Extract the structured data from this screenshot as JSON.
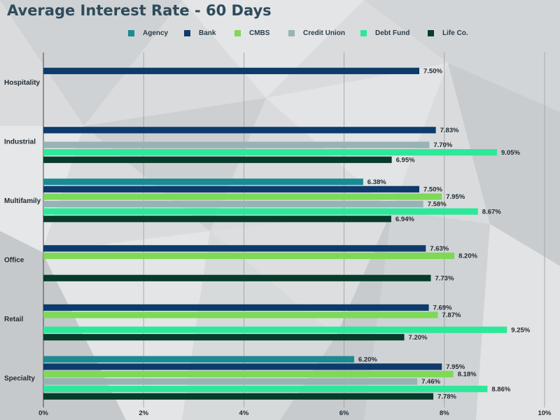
{
  "chart_data": {
    "type": "bar",
    "orientation": "horizontal",
    "title": "Average Interest Rate - 60 Days",
    "categories": [
      "Hospitality",
      "Industrial",
      "Multifamily",
      "Office",
      "Retail",
      "Specialty"
    ],
    "series": [
      {
        "name": "Agency",
        "color": "#1a8a94",
        "values": [
          null,
          null,
          6.38,
          null,
          null,
          6.2
        ]
      },
      {
        "name": "Bank",
        "color": "#0d3b6b",
        "values": [
          7.5,
          7.83,
          7.5,
          7.63,
          7.69,
          7.95
        ]
      },
      {
        "name": "CMBS",
        "color": "#7ed957",
        "values": [
          null,
          null,
          7.95,
          8.2,
          7.87,
          8.18
        ]
      },
      {
        "name": "Credit Union",
        "color": "#97b3b5",
        "values": [
          null,
          7.7,
          7.58,
          null,
          null,
          7.46
        ]
      },
      {
        "name": "Debt Fund",
        "color": "#2ee89a",
        "values": [
          null,
          9.05,
          8.67,
          null,
          9.25,
          8.86
        ]
      },
      {
        "name": "Life Co.",
        "color": "#073b2a",
        "values": [
          null,
          6.95,
          6.94,
          7.73,
          7.2,
          7.78
        ]
      }
    ],
    "data_labels": [
      [
        "",
        "7.50%",
        "",
        "",
        "",
        ""
      ],
      [
        "",
        "7.83%",
        "",
        "7.70%",
        "9.05%",
        "6.95%"
      ],
      [
        "6.38%",
        "7.50%",
        "7.95%",
        "7.58%",
        "8.67%",
        "6.94%"
      ],
      [
        "",
        "7.63%",
        "8.20%",
        "",
        "",
        "7.73%"
      ],
      [
        "",
        "7.69%",
        "7.87%",
        "",
        "9.25%",
        "7.20%"
      ],
      [
        "6.20%",
        "7.95%",
        "8.18%",
        "7.46%",
        "8.86%",
        "7.78%"
      ]
    ],
    "xlim": [
      0,
      10
    ],
    "xticks": [
      "0%",
      "2%",
      "4%",
      "6%",
      "8%",
      "10%"
    ],
    "grid": true,
    "legend_position": "top"
  }
}
